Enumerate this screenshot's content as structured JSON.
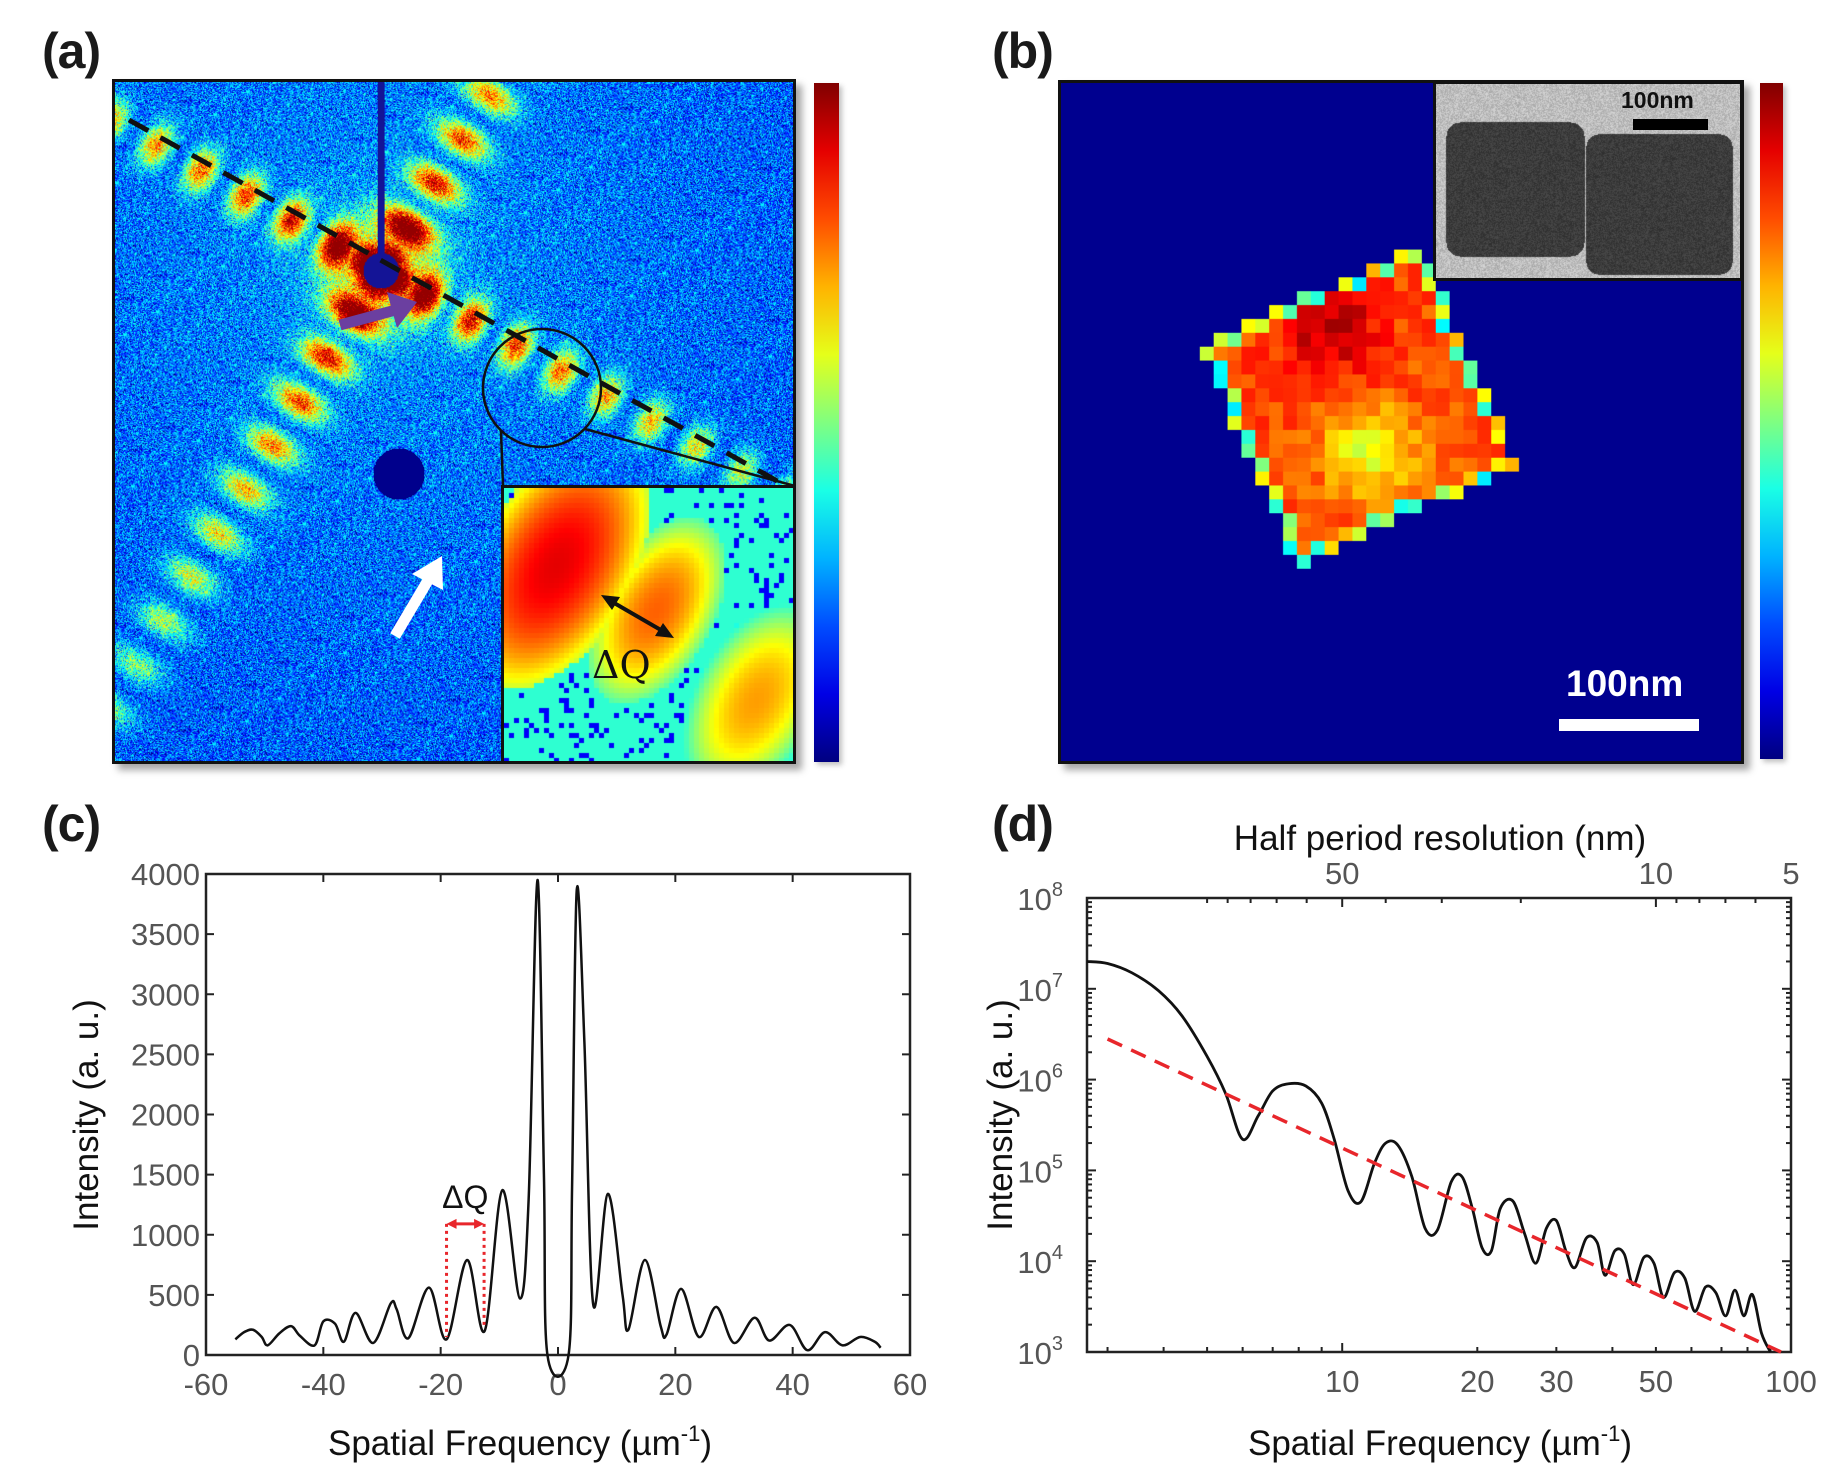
{
  "panels": {
    "a": {
      "label": "(a)",
      "description": "Coherent X-ray diffraction pattern",
      "inset_annotation": "ΔQ",
      "colormap": "jet"
    },
    "b": {
      "label": "(b)",
      "description": "Reconstructed nanocube image",
      "scalebar_label": "100nm",
      "inset_scalebar_label": "100nm",
      "colormap": "jet"
    },
    "c": {
      "label": "(c)"
    },
    "d": {
      "label": "(d)"
    }
  },
  "colors": {
    "curve": "#111111",
    "fit_line": "#e8262b",
    "dq_marker": "#e8262b",
    "purple_arrow": "#6b3fa0",
    "white_arrow": "#ffffff",
    "axis_text": "#555555"
  },
  "chart_data": [
    {
      "id": "c",
      "type": "line",
      "title": "",
      "xlabel": "Spatial Frequency (µm",
      "xlabel_sup": "-1",
      "xlabel_end": ")",
      "ylabel": "Intensity (a. u.)",
      "xlim": [
        -60,
        60
      ],
      "ylim": [
        0,
        4000
      ],
      "xticks": [
        -60,
        -40,
        -20,
        0,
        20,
        40,
        60
      ],
      "yticks": [
        0,
        500,
        1000,
        1500,
        2000,
        2500,
        3000,
        3500,
        4000
      ],
      "grid": false,
      "annotation": {
        "text": "ΔQ",
        "x_start": -19,
        "x_end": -12.6,
        "y": 1090
      },
      "series": [
        {
          "name": "line profile",
          "x": [
            -55,
            -53.5,
            -52,
            -50.5,
            -49.5,
            -47.5,
            -45.5,
            -44,
            -41.5,
            -40,
            -38,
            -36.5,
            -34.5,
            -31.5,
            -28.5,
            -27.5,
            -25.5,
            -22,
            -19,
            -15.5,
            -12.5,
            -9.5,
            -6.5,
            -5,
            -3.5,
            -2.4,
            -1.8,
            1.8,
            2.4,
            3.2,
            4.5,
            6,
            8.5,
            11,
            12,
            14.8,
            17.5,
            18.5,
            21,
            24,
            27,
            30,
            33.5,
            36,
            39.5,
            42.5,
            45.5,
            48.5,
            51.5,
            54,
            55
          ],
          "y": [
            130,
            190,
            210,
            150,
            80,
            180,
            240,
            160,
            80,
            280,
            260,
            110,
            350,
            100,
            430,
            380,
            140,
            560,
            130,
            790,
            200,
            1370,
            470,
            1300,
            3950,
            1500,
            0,
            0,
            1400,
            3870,
            2600,
            420,
            1340,
            500,
            210,
            790,
            240,
            170,
            550,
            150,
            400,
            100,
            310,
            120,
            250,
            40,
            190,
            80,
            150,
            110,
            60
          ]
        }
      ]
    },
    {
      "id": "d",
      "type": "line",
      "scale": "log-log",
      "title": "",
      "xlabel": "Spatial Frequency (µm",
      "xlabel_sup": "-1",
      "xlabel_end": ")",
      "ylabel": "Intensity (a. u.)",
      "top_xlabel": "Half period resolution (nm)",
      "xlim": [
        2.7,
        100
      ],
      "ylim": [
        1000,
        100000000
      ],
      "xticks": [
        10,
        20,
        30,
        50,
        100
      ],
      "yticks": [
        1000,
        10000,
        100000,
        1000000,
        10000000,
        100000000
      ],
      "ytick_labels": [
        {
          "base": "10",
          "exp": "3"
        },
        {
          "base": "10",
          "exp": "4"
        },
        {
          "base": "10",
          "exp": "5"
        },
        {
          "base": "10",
          "exp": "6"
        },
        {
          "base": "10",
          "exp": "7"
        },
        {
          "base": "10",
          "exp": "8"
        }
      ],
      "top_xticks": [
        50,
        10,
        5
      ],
      "grid": false,
      "series": [
        {
          "name": "PRTF / power spectrum",
          "style": "solid",
          "x": [
            2.7,
            3.0,
            3.4,
            3.9,
            4.4,
            5.0,
            5.5,
            6.0,
            6.5,
            7.0,
            7.6,
            8.3,
            9.0,
            9.6,
            10.3,
            11.0,
            11.8,
            12.5,
            13.3,
            14.3,
            15.3,
            16.3,
            17.5,
            18.5,
            19.5,
            20.5,
            21.5,
            22.5,
            24.0,
            25.5,
            27.0,
            28.5,
            30.0,
            31.5,
            33.0,
            35.0,
            37.0,
            38.5,
            40.5,
            42.5,
            44.5,
            47.0,
            49.5,
            52.0,
            55.0,
            58.0,
            61.0,
            64.5,
            68.0,
            71.5,
            75.0,
            78.5,
            82.0,
            86.0,
            90.0
          ],
          "y": [
            20000000.0,
            19000000.0,
            15000000.0,
            9500000.0,
            5000000.0,
            1800000.0,
            700000.0,
            220000.0,
            400000.0,
            750000.0,
            900000.0,
            850000.0,
            550000.0,
            220000.0,
            60000.0,
            45000.0,
            120000.0,
            200000.0,
            190000.0,
            85000.0,
            23000.0,
            22000.0,
            75000.0,
            85000.0,
            38000.0,
            14000.0,
            13000.0,
            38000.0,
            46000.0,
            20000.0,
            9500.0,
            23000.0,
            28000.0,
            13000.0,
            8500.0,
            18000.0,
            16000.0,
            7000.0,
            13000.0,
            12000.0,
            5500.0,
            11000.0,
            9500.0,
            4000.0,
            7500.0,
            6500.0,
            2800.0,
            5200.0,
            4500.0,
            2500.0,
            4800.0,
            2500.0,
            4300.0,
            1600.0,
            1000.0
          ]
        },
        {
          "name": "power-law fit",
          "style": "dashed",
          "x": [
            3.0,
            95.0
          ],
          "y": [
            2800000.0,
            1000.0
          ]
        }
      ]
    }
  ]
}
